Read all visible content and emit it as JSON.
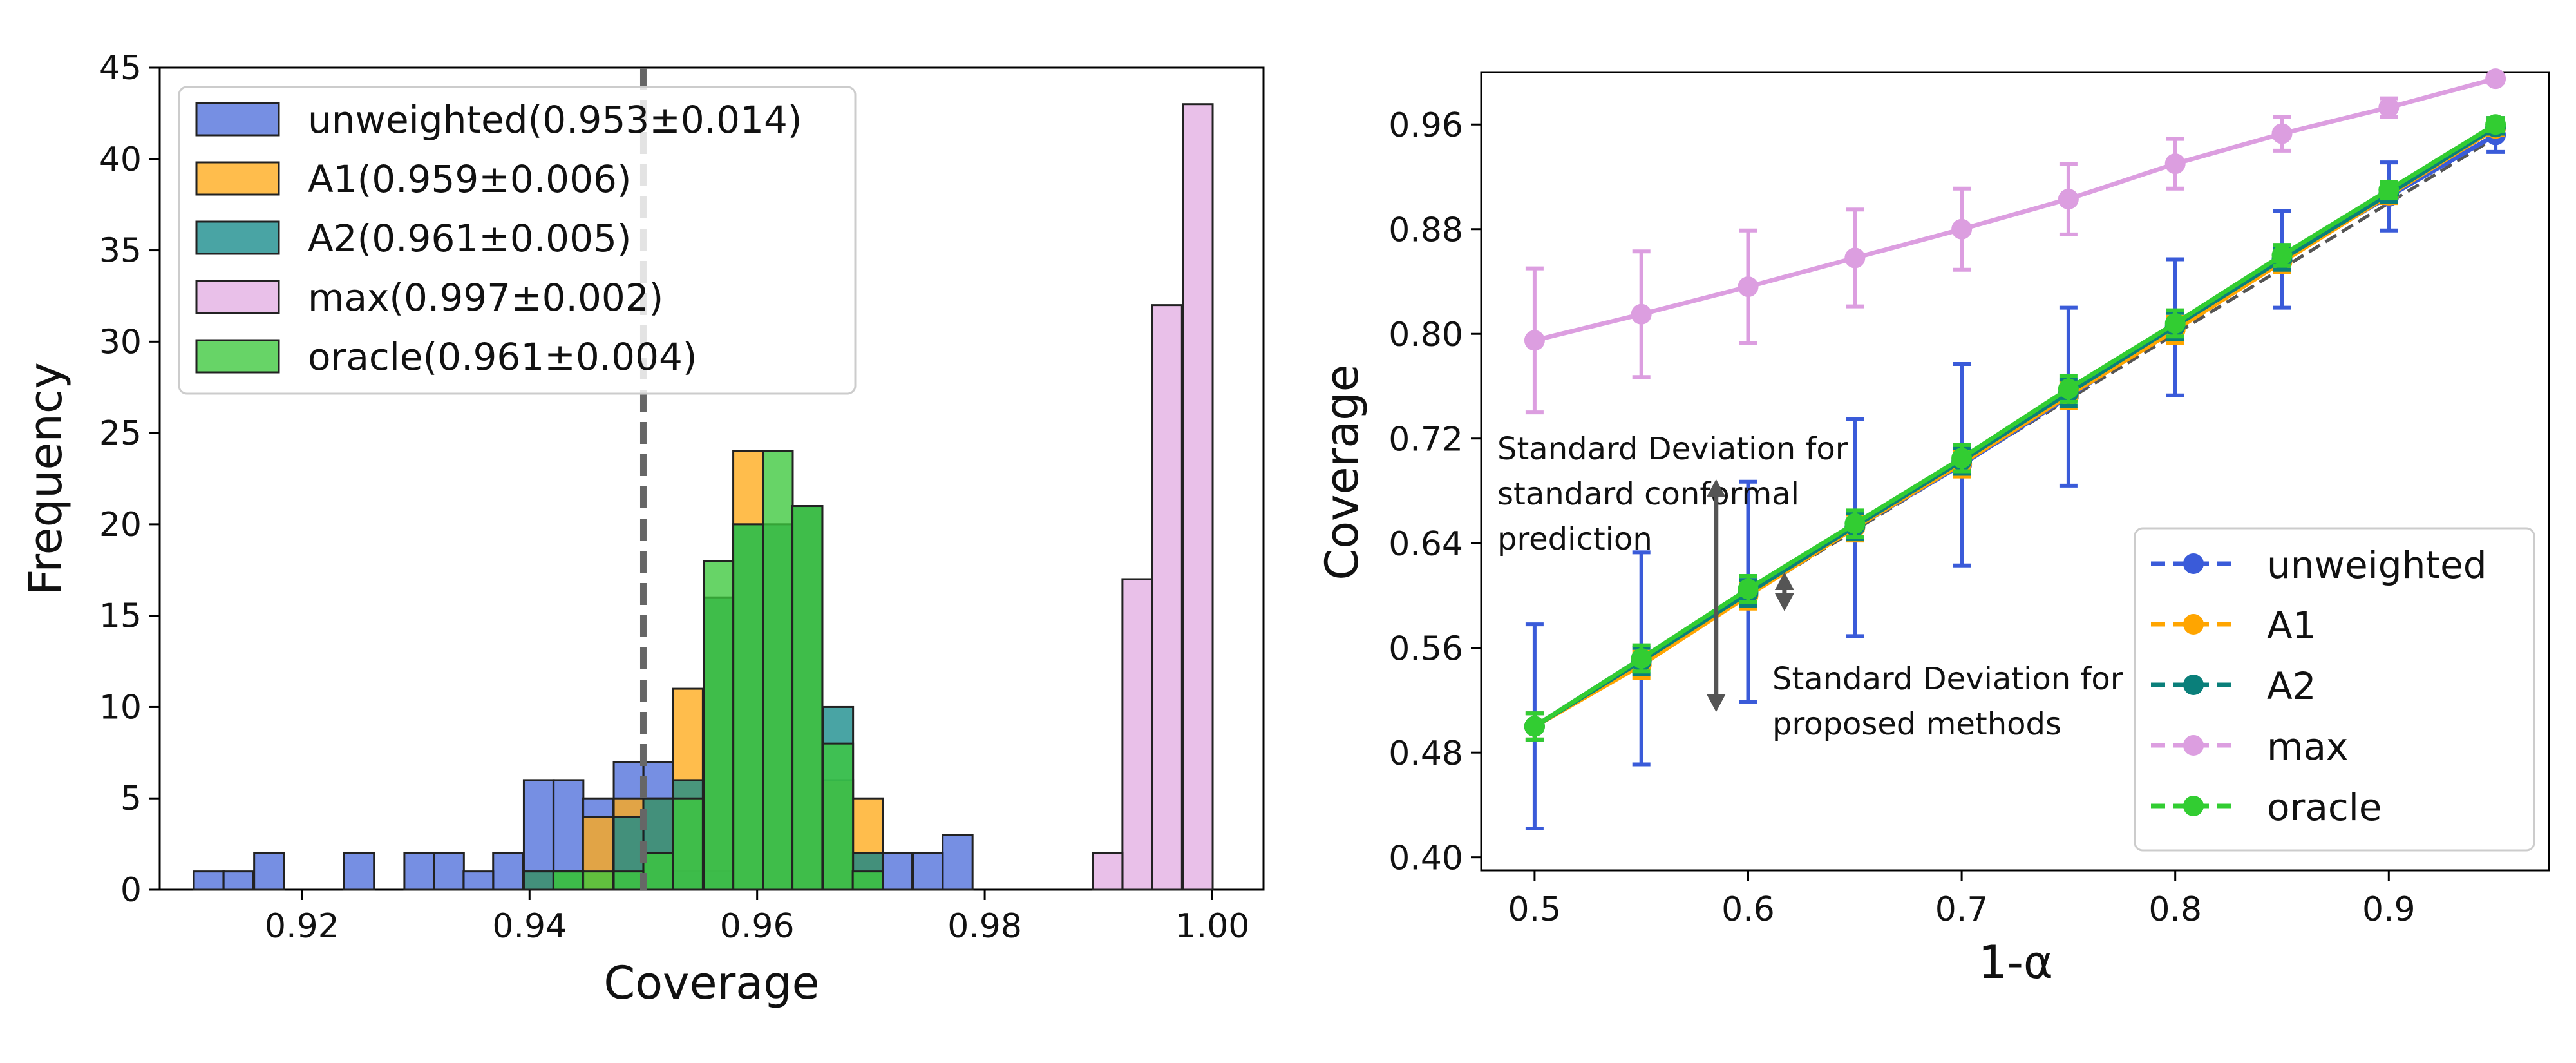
{
  "chart_data": [
    {
      "type": "bar",
      "title": "",
      "xlabel": "Coverage",
      "ylabel": "Frequency",
      "xlim": [
        0.9075,
        1.0045
      ],
      "ylim": [
        0,
        45
      ],
      "xticks": [
        0.92,
        0.94,
        0.96,
        0.98,
        1.0
      ],
      "xtick_labels": [
        "0.92",
        "0.94",
        "0.96",
        "0.98",
        "1.00"
      ],
      "yticks": [
        0,
        5,
        10,
        15,
        20,
        25,
        30,
        35,
        40,
        45
      ],
      "ytick_labels": [
        "0",
        "5",
        "10",
        "15",
        "20",
        "25",
        "30",
        "35",
        "40",
        "45"
      ],
      "bin_width": 0.00263,
      "reference_line": {
        "x": 0.95,
        "style": "dashed"
      },
      "legend_position": "top-left",
      "series": [
        {
          "name": "unweighted(0.953±0.014)",
          "color": "#4f6fdb",
          "bin_starts": [
            0.9105,
            0.9131,
            0.9158,
            0.9237,
            0.929,
            0.9316,
            0.9342,
            0.9368,
            0.9395,
            0.9421,
            0.9447,
            0.9474,
            0.95,
            0.9526,
            0.9553,
            0.9684,
            0.971,
            0.9737,
            0.9763
          ],
          "counts": [
            1,
            1,
            2,
            2,
            2,
            2,
            1,
            2,
            6,
            6,
            5,
            7,
            7,
            1,
            1,
            2,
            2,
            2,
            3
          ]
        },
        {
          "name": "A1(0.959±0.006)",
          "color": "#ffab1a",
          "bin_starts": [
            0.9395,
            0.9421,
            0.9447,
            0.9474,
            0.95,
            0.9526,
            0.9553,
            0.9579,
            0.9605,
            0.9631,
            0.9658,
            0.9684
          ],
          "counts": [
            1,
            1,
            4,
            5,
            5,
            11,
            16,
            24,
            20,
            21,
            6,
            5
          ]
        },
        {
          "name": "A2(0.961±0.005)",
          "color": "#168a8a",
          "bin_starts": [
            0.9395,
            0.9421,
            0.9474,
            0.95,
            0.9526,
            0.9553,
            0.9579,
            0.9605,
            0.9631,
            0.9658,
            0.9684
          ],
          "counts": [
            1,
            1,
            4,
            5,
            6,
            16,
            20,
            20,
            21,
            10,
            2
          ]
        },
        {
          "name": "max(0.997±0.002)",
          "color": "#e3aee3",
          "bin_starts": [
            0.9895,
            0.9921,
            0.9947,
            0.9974
          ],
          "counts": [
            2,
            17,
            32,
            43
          ]
        },
        {
          "name": "oracle(0.961±0.004)",
          "color": "#3cc83c",
          "bin_starts": [
            0.9421,
            0.9447,
            0.9474,
            0.95,
            0.9526,
            0.9553,
            0.9579,
            0.9605,
            0.9631,
            0.9658,
            0.9684
          ],
          "counts": [
            1,
            1,
            1,
            2,
            5,
            18,
            20,
            24,
            21,
            8,
            1
          ]
        }
      ]
    },
    {
      "type": "line",
      "title": "",
      "xlabel": "1-α",
      "ylabel": "Coverage",
      "xlim": [
        0.475,
        0.975
      ],
      "ylim": [
        0.39,
        1.0
      ],
      "x": [
        0.5,
        0.55,
        0.6,
        0.65,
        0.7,
        0.75,
        0.8,
        0.85,
        0.9,
        0.95
      ],
      "xticks": [
        0.5,
        0.6,
        0.7,
        0.8,
        0.9
      ],
      "xtick_labels": [
        "0.5",
        "0.6",
        "0.7",
        "0.8",
        "0.9"
      ],
      "yticks": [
        0.4,
        0.48,
        0.56,
        0.64,
        0.72,
        0.8,
        0.88,
        0.96
      ],
      "ytick_labels": [
        "0.40",
        "0.48",
        "0.56",
        "0.64",
        "0.72",
        "0.80",
        "0.88",
        "0.96"
      ],
      "legend_position": "lower-right",
      "reference_line": {
        "from": [
          0.5,
          0.5
        ],
        "to": [
          0.95,
          0.95
        ],
        "style": "dashed"
      },
      "series": [
        {
          "name": "unweighted",
          "color": "#3a5bd9",
          "values": [
            0.5,
            0.552,
            0.603,
            0.652,
            0.7,
            0.752,
            0.805,
            0.857,
            0.905,
            0.952
          ],
          "errors": [
            0.078,
            0.081,
            0.084,
            0.083,
            0.077,
            0.068,
            0.052,
            0.037,
            0.026,
            0.013
          ]
        },
        {
          "name": "A1",
          "color": "#ffa500",
          "values": [
            0.5,
            0.547,
            0.6,
            0.652,
            0.701,
            0.753,
            0.803,
            0.855,
            0.906,
            0.957
          ],
          "errors": [
            0.01,
            0.01,
            0.01,
            0.01,
            0.01,
            0.01,
            0.01,
            0.008,
            0.006,
            0.005
          ]
        },
        {
          "name": "A2",
          "color": "#0a7f7a",
          "values": [
            0.5,
            0.55,
            0.602,
            0.653,
            0.703,
            0.755,
            0.806,
            0.857,
            0.907,
            0.958
          ],
          "errors": [
            0.01,
            0.01,
            0.01,
            0.01,
            0.01,
            0.01,
            0.01,
            0.008,
            0.006,
            0.005
          ]
        },
        {
          "name": "max",
          "color": "#dc9ee0",
          "values": [
            0.795,
            0.815,
            0.836,
            0.858,
            0.88,
            0.903,
            0.93,
            0.953,
            0.973,
            0.995
          ],
          "errors": [
            0.055,
            0.048,
            0.043,
            0.037,
            0.031,
            0.027,
            0.019,
            0.013,
            0.007,
            0.003
          ]
        },
        {
          "name": "oracle",
          "color": "#32cd32",
          "values": [
            0.5,
            0.552,
            0.605,
            0.655,
            0.705,
            0.758,
            0.808,
            0.86,
            0.91,
            0.96
          ],
          "errors": [
            0.01,
            0.01,
            0.01,
            0.01,
            0.01,
            0.01,
            0.01,
            0.008,
            0.006,
            0.005
          ]
        }
      ],
      "annotations": [
        {
          "lines": [
            "Standard Deviation for",
            "standard conformal",
            "prediction"
          ],
          "arrow_x": 0.585,
          "arrow_range": [
            0.513,
            0.687
          ]
        },
        {
          "lines": [
            "Standard Deviation for",
            "proposed methods"
          ],
          "arrow_x": 0.617,
          "arrow_range": [
            0.59,
            0.616
          ]
        }
      ]
    }
  ]
}
